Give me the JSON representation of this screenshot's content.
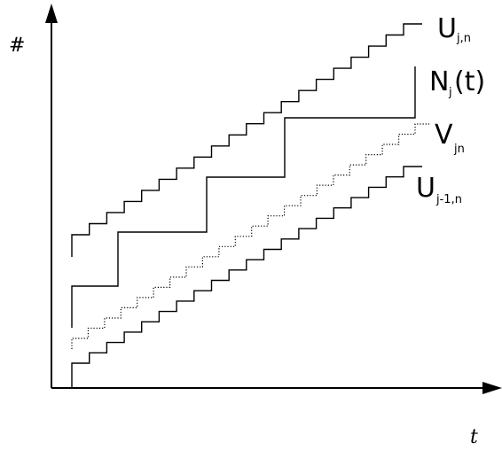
{
  "axes": {
    "y_label": "#",
    "x_label": "t"
  },
  "curves": {
    "upper": {
      "main": "U",
      "sub": "j,n"
    },
    "process": {
      "main": "N",
      "sub": "j",
      "suffix": "(t)"
    },
    "middle": {
      "main": "V",
      "sub": "jn"
    },
    "lower": {
      "main": "U",
      "sub": "j-1,n"
    }
  }
}
